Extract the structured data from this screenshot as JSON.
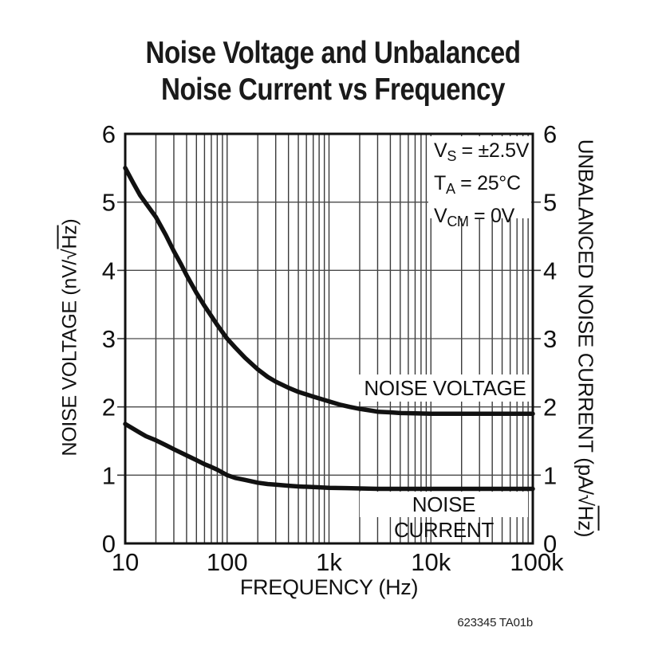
{
  "title": {
    "line1": "Noise Voltage and Unbalanced",
    "line2": "Noise Current vs Frequency"
  },
  "watermark": "623345 TA01b",
  "chart_data": {
    "type": "line",
    "title": "Noise Voltage and Unbalanced Noise Current vs Frequency",
    "grid": true,
    "legend_position": "labels-on-plot",
    "x_axis": {
      "label": "FREQUENCY (Hz)",
      "scale": "log",
      "min": 10,
      "max": 100000,
      "ticks": [
        {
          "value": 10,
          "label": "10"
        },
        {
          "value": 100,
          "label": "100"
        },
        {
          "value": 1000,
          "label": "1k"
        },
        {
          "value": 10000,
          "label": "10k"
        },
        {
          "value": 100000,
          "label": "100k"
        }
      ]
    },
    "y_axis_left": {
      "label": "NOISE VOLTAGE (nV/√Hz)",
      "label_prefix": "NOISE VOLTAGE (nV/√",
      "label_overline": "Hz",
      "label_suffix": ")",
      "min": 0,
      "max": 6,
      "ticks": [
        0,
        1,
        2,
        3,
        4,
        5,
        6
      ]
    },
    "y_axis_right": {
      "label": "UNBALANCED NOISE CURRENT (pA/√Hz)",
      "label_prefix": "UNBALANCED NOISE CURRENT (pA/√",
      "label_overline": "Hz",
      "label_suffix": ")",
      "min": 0,
      "max": 6,
      "ticks": [
        0,
        1,
        2,
        3,
        4,
        5,
        6
      ]
    },
    "conditions": [
      {
        "base": "V",
        "sub": "S",
        "rest": " = ±2.5V"
      },
      {
        "base": "T",
        "sub": "A",
        "rest": " = 25°C"
      },
      {
        "base": "V",
        "sub": "CM",
        "rest": " = 0V"
      }
    ],
    "series": [
      {
        "name": "NOISE VOLTAGE",
        "axis": "left",
        "unit": "nV/√Hz",
        "points": [
          [
            10,
            5.5
          ],
          [
            12,
            5.28
          ],
          [
            14,
            5.1
          ],
          [
            16,
            4.98
          ],
          [
            20,
            4.78
          ],
          [
            25,
            4.52
          ],
          [
            30,
            4.28
          ],
          [
            35,
            4.1
          ],
          [
            40,
            3.93
          ],
          [
            50,
            3.67
          ],
          [
            60,
            3.48
          ],
          [
            70,
            3.33
          ],
          [
            80,
            3.2
          ],
          [
            100,
            3.0
          ],
          [
            120,
            2.87
          ],
          [
            150,
            2.72
          ],
          [
            200,
            2.55
          ],
          [
            250,
            2.44
          ],
          [
            300,
            2.37
          ],
          [
            400,
            2.28
          ],
          [
            500,
            2.22
          ],
          [
            700,
            2.15
          ],
          [
            1000,
            2.08
          ],
          [
            1300,
            2.03
          ],
          [
            1600,
            2.0
          ],
          [
            2000,
            1.97
          ],
          [
            2500,
            1.95
          ],
          [
            3000,
            1.93
          ],
          [
            4000,
            1.92
          ],
          [
            5000,
            1.91
          ],
          [
            7000,
            1.905
          ],
          [
            10000,
            1.9
          ],
          [
            20000,
            1.9
          ],
          [
            50000,
            1.9
          ],
          [
            100000,
            1.9
          ]
        ]
      },
      {
        "name": "NOISE CURRENT",
        "axis": "right",
        "unit": "pA/√Hz",
        "points": [
          [
            10,
            1.75
          ],
          [
            12,
            1.68
          ],
          [
            14,
            1.62
          ],
          [
            16,
            1.57
          ],
          [
            20,
            1.51
          ],
          [
            25,
            1.44
          ],
          [
            30,
            1.38
          ],
          [
            40,
            1.29
          ],
          [
            50,
            1.22
          ],
          [
            60,
            1.16
          ],
          [
            70,
            1.12
          ],
          [
            80,
            1.08
          ],
          [
            100,
            1.0
          ],
          [
            120,
            0.96
          ],
          [
            150,
            0.93
          ],
          [
            200,
            0.89
          ],
          [
            250,
            0.87
          ],
          [
            300,
            0.86
          ],
          [
            400,
            0.845
          ],
          [
            500,
            0.835
          ],
          [
            700,
            0.825
          ],
          [
            1000,
            0.815
          ],
          [
            1500,
            0.81
          ],
          [
            2000,
            0.805
          ],
          [
            3000,
            0.8
          ],
          [
            5000,
            0.8
          ],
          [
            10000,
            0.8
          ],
          [
            30000,
            0.8
          ],
          [
            100000,
            0.8
          ]
        ]
      }
    ],
    "colors": {
      "curve": "#111111",
      "grid_vertical": "#3a3a3a",
      "grid_horizontal": "#4a4a4a",
      "frame": "#111111",
      "text": "#111111",
      "background": "#ffffff"
    }
  }
}
